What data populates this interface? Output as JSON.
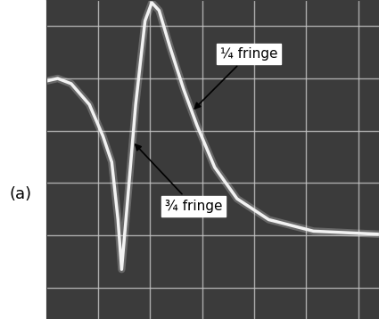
{
  "chart_data": {
    "type": "line",
    "label": "(a)",
    "x": [
      0,
      0.22,
      0.48,
      0.83,
      1.09,
      1.26,
      1.38,
      1.45,
      1.55,
      1.72,
      1.9,
      2.03,
      2.17,
      2.38,
      2.64,
      2.9,
      3.24,
      3.67,
      4.28,
      5.14,
      6.43
    ],
    "values": [
      2.95,
      3.0,
      2.9,
      2.5,
      1.9,
      1.4,
      0.3,
      -0.65,
      0.5,
      2.5,
      4.1,
      4.45,
      4.3,
      3.6,
      2.8,
      2.1,
      1.3,
      0.7,
      0.3,
      0.08,
      0.02
    ],
    "color": "#f2f2f2",
    "xlim": [
      0,
      6.4
    ],
    "xticks": [
      1,
      2,
      3,
      4,
      5,
      6
    ],
    "ylim": [
      -1.6,
      4.5
    ],
    "yticks": [
      -1,
      0,
      1,
      2,
      3,
      4
    ],
    "grid": true,
    "tick_labels": false,
    "annotations": [
      {
        "text": "¼ fringe",
        "x": 2.8
      },
      {
        "text": "¾ fringe",
        "x": 1.66
      }
    ]
  }
}
